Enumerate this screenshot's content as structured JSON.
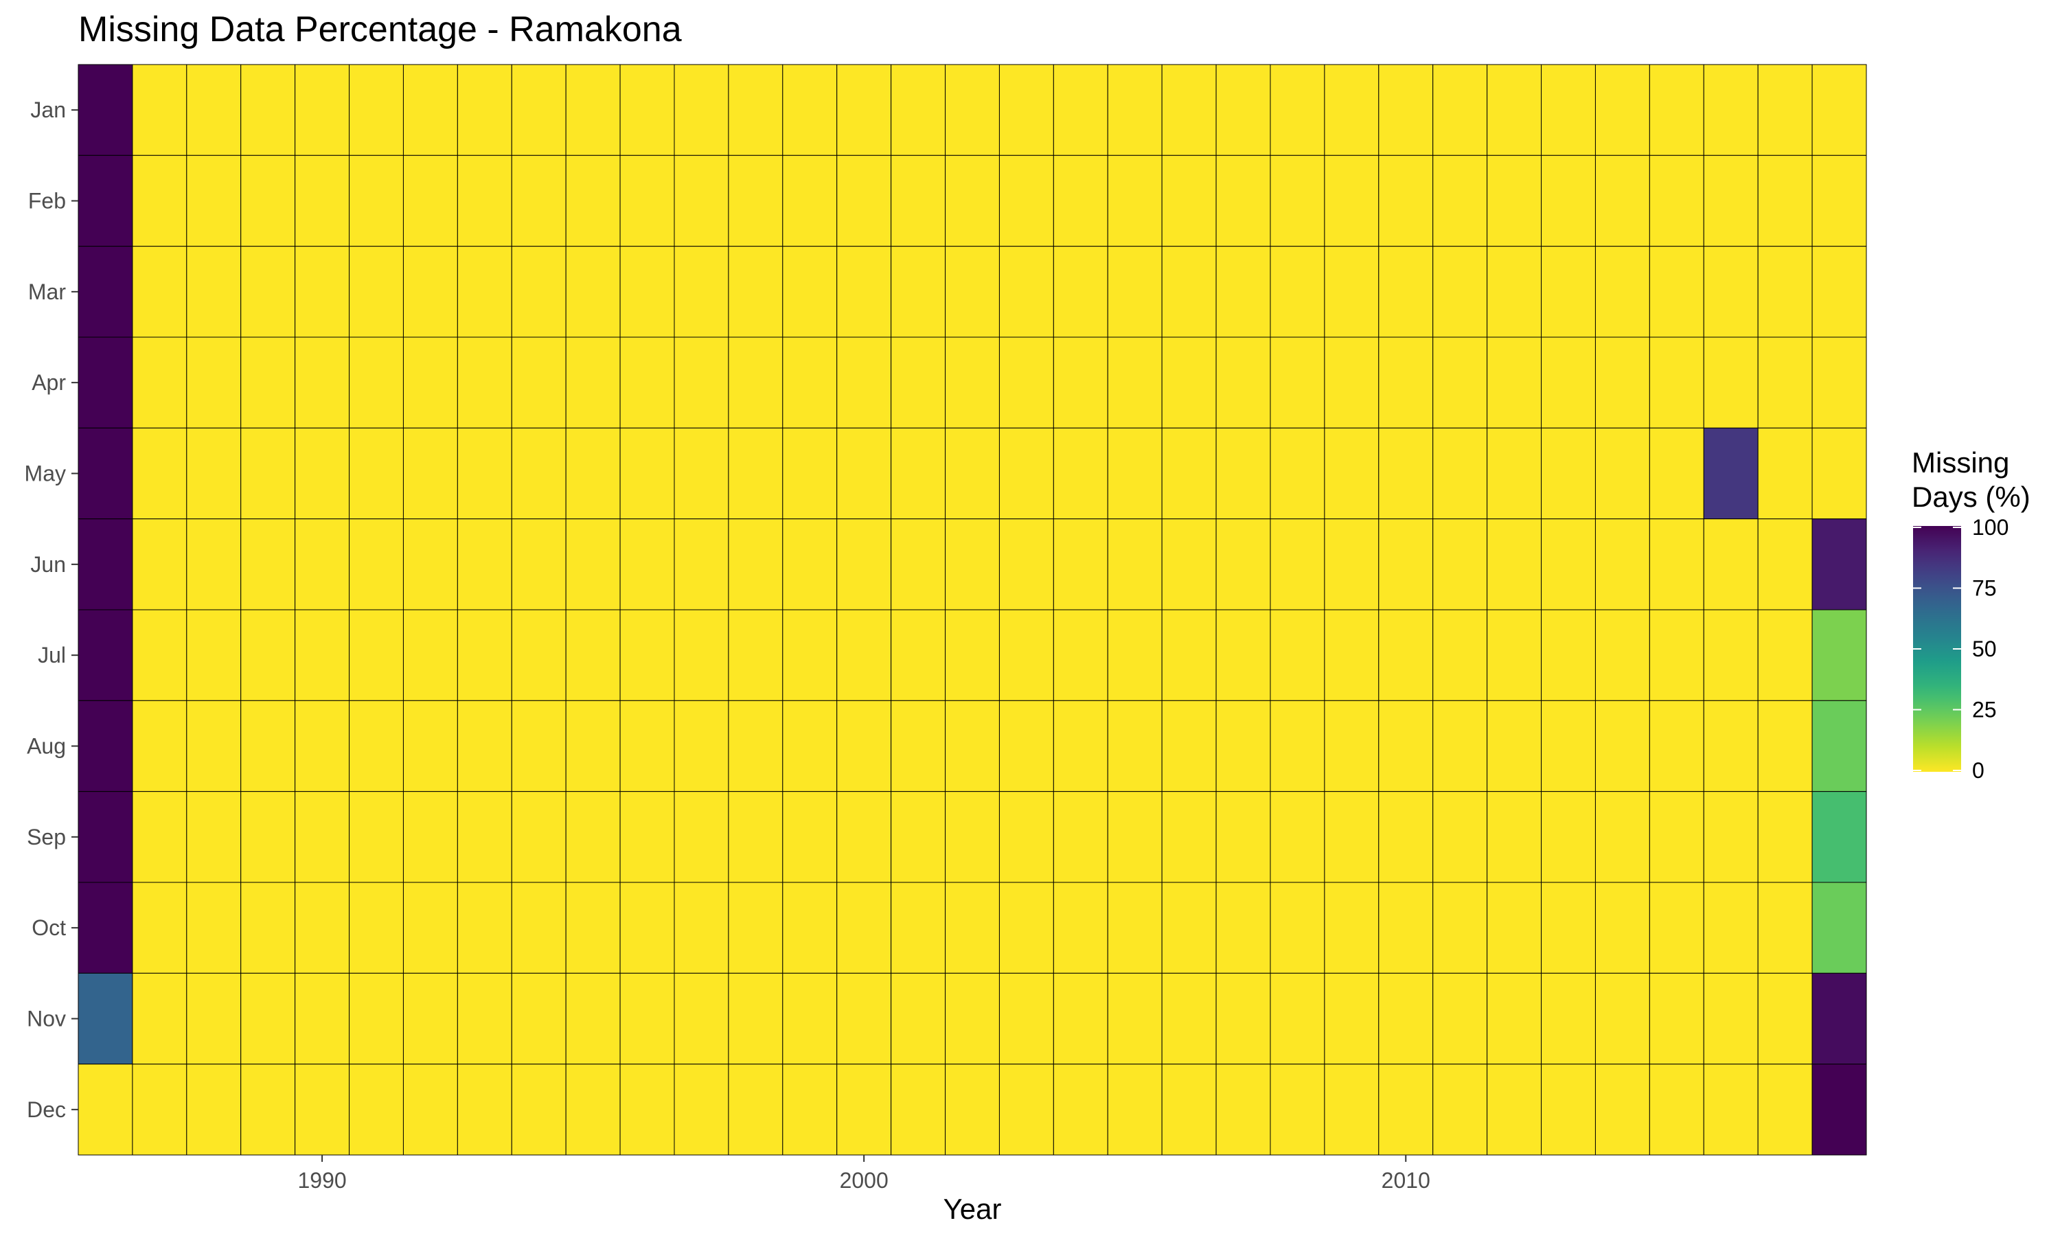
{
  "chart_data": {
    "type": "heatmap",
    "title": "Missing Data Percentage - Ramakona",
    "xlabel": "Year",
    "ylabel": "",
    "x_start": 1986,
    "x_end": 2018,
    "x_ticks": [
      1990,
      2000,
      2010
    ],
    "months": [
      "Jan",
      "Feb",
      "Mar",
      "Apr",
      "May",
      "Jun",
      "Jul",
      "Aug",
      "Sep",
      "Oct",
      "Nov",
      "Dec"
    ],
    "default_value": 0,
    "cells": [
      {
        "year": 1986,
        "month": "Jan",
        "value": 100
      },
      {
        "year": 1986,
        "month": "Feb",
        "value": 100
      },
      {
        "year": 1986,
        "month": "Mar",
        "value": 100
      },
      {
        "year": 1986,
        "month": "Apr",
        "value": 100
      },
      {
        "year": 1986,
        "month": "May",
        "value": 100
      },
      {
        "year": 1986,
        "month": "Jun",
        "value": 100
      },
      {
        "year": 1986,
        "month": "Jul",
        "value": 100
      },
      {
        "year": 1986,
        "month": "Aug",
        "value": 100
      },
      {
        "year": 1986,
        "month": "Sep",
        "value": 100
      },
      {
        "year": 1986,
        "month": "Oct",
        "value": 100
      },
      {
        "year": 1986,
        "month": "Nov",
        "value": 68
      },
      {
        "year": 1986,
        "month": "Dec",
        "value": 0
      },
      {
        "year": 2016,
        "month": "May",
        "value": 84
      },
      {
        "year": 2018,
        "month": "Jun",
        "value": 93
      },
      {
        "year": 2018,
        "month": "Jul",
        "value": 20
      },
      {
        "year": 2018,
        "month": "Aug",
        "value": 23
      },
      {
        "year": 2018,
        "month": "Sep",
        "value": 30
      },
      {
        "year": 2018,
        "month": "Oct",
        "value": 23
      },
      {
        "year": 2018,
        "month": "Nov",
        "value": 97
      },
      {
        "year": 2018,
        "month": "Dec",
        "value": 100
      }
    ],
    "color_scale": {
      "name": "viridis",
      "min": 0,
      "max": 100,
      "stops": [
        "#440154",
        "#482878",
        "#3e4a89",
        "#31688e",
        "#26828e",
        "#1f9e89",
        "#35b779",
        "#6ece58",
        "#b5de2b",
        "#fde725"
      ]
    },
    "legend": {
      "title_line1": "Missing",
      "title_line2": "Days (%)",
      "ticks": [
        100,
        75,
        50,
        25,
        0
      ],
      "position": "right"
    },
    "grid": false,
    "cell_border_color": "#000000"
  }
}
